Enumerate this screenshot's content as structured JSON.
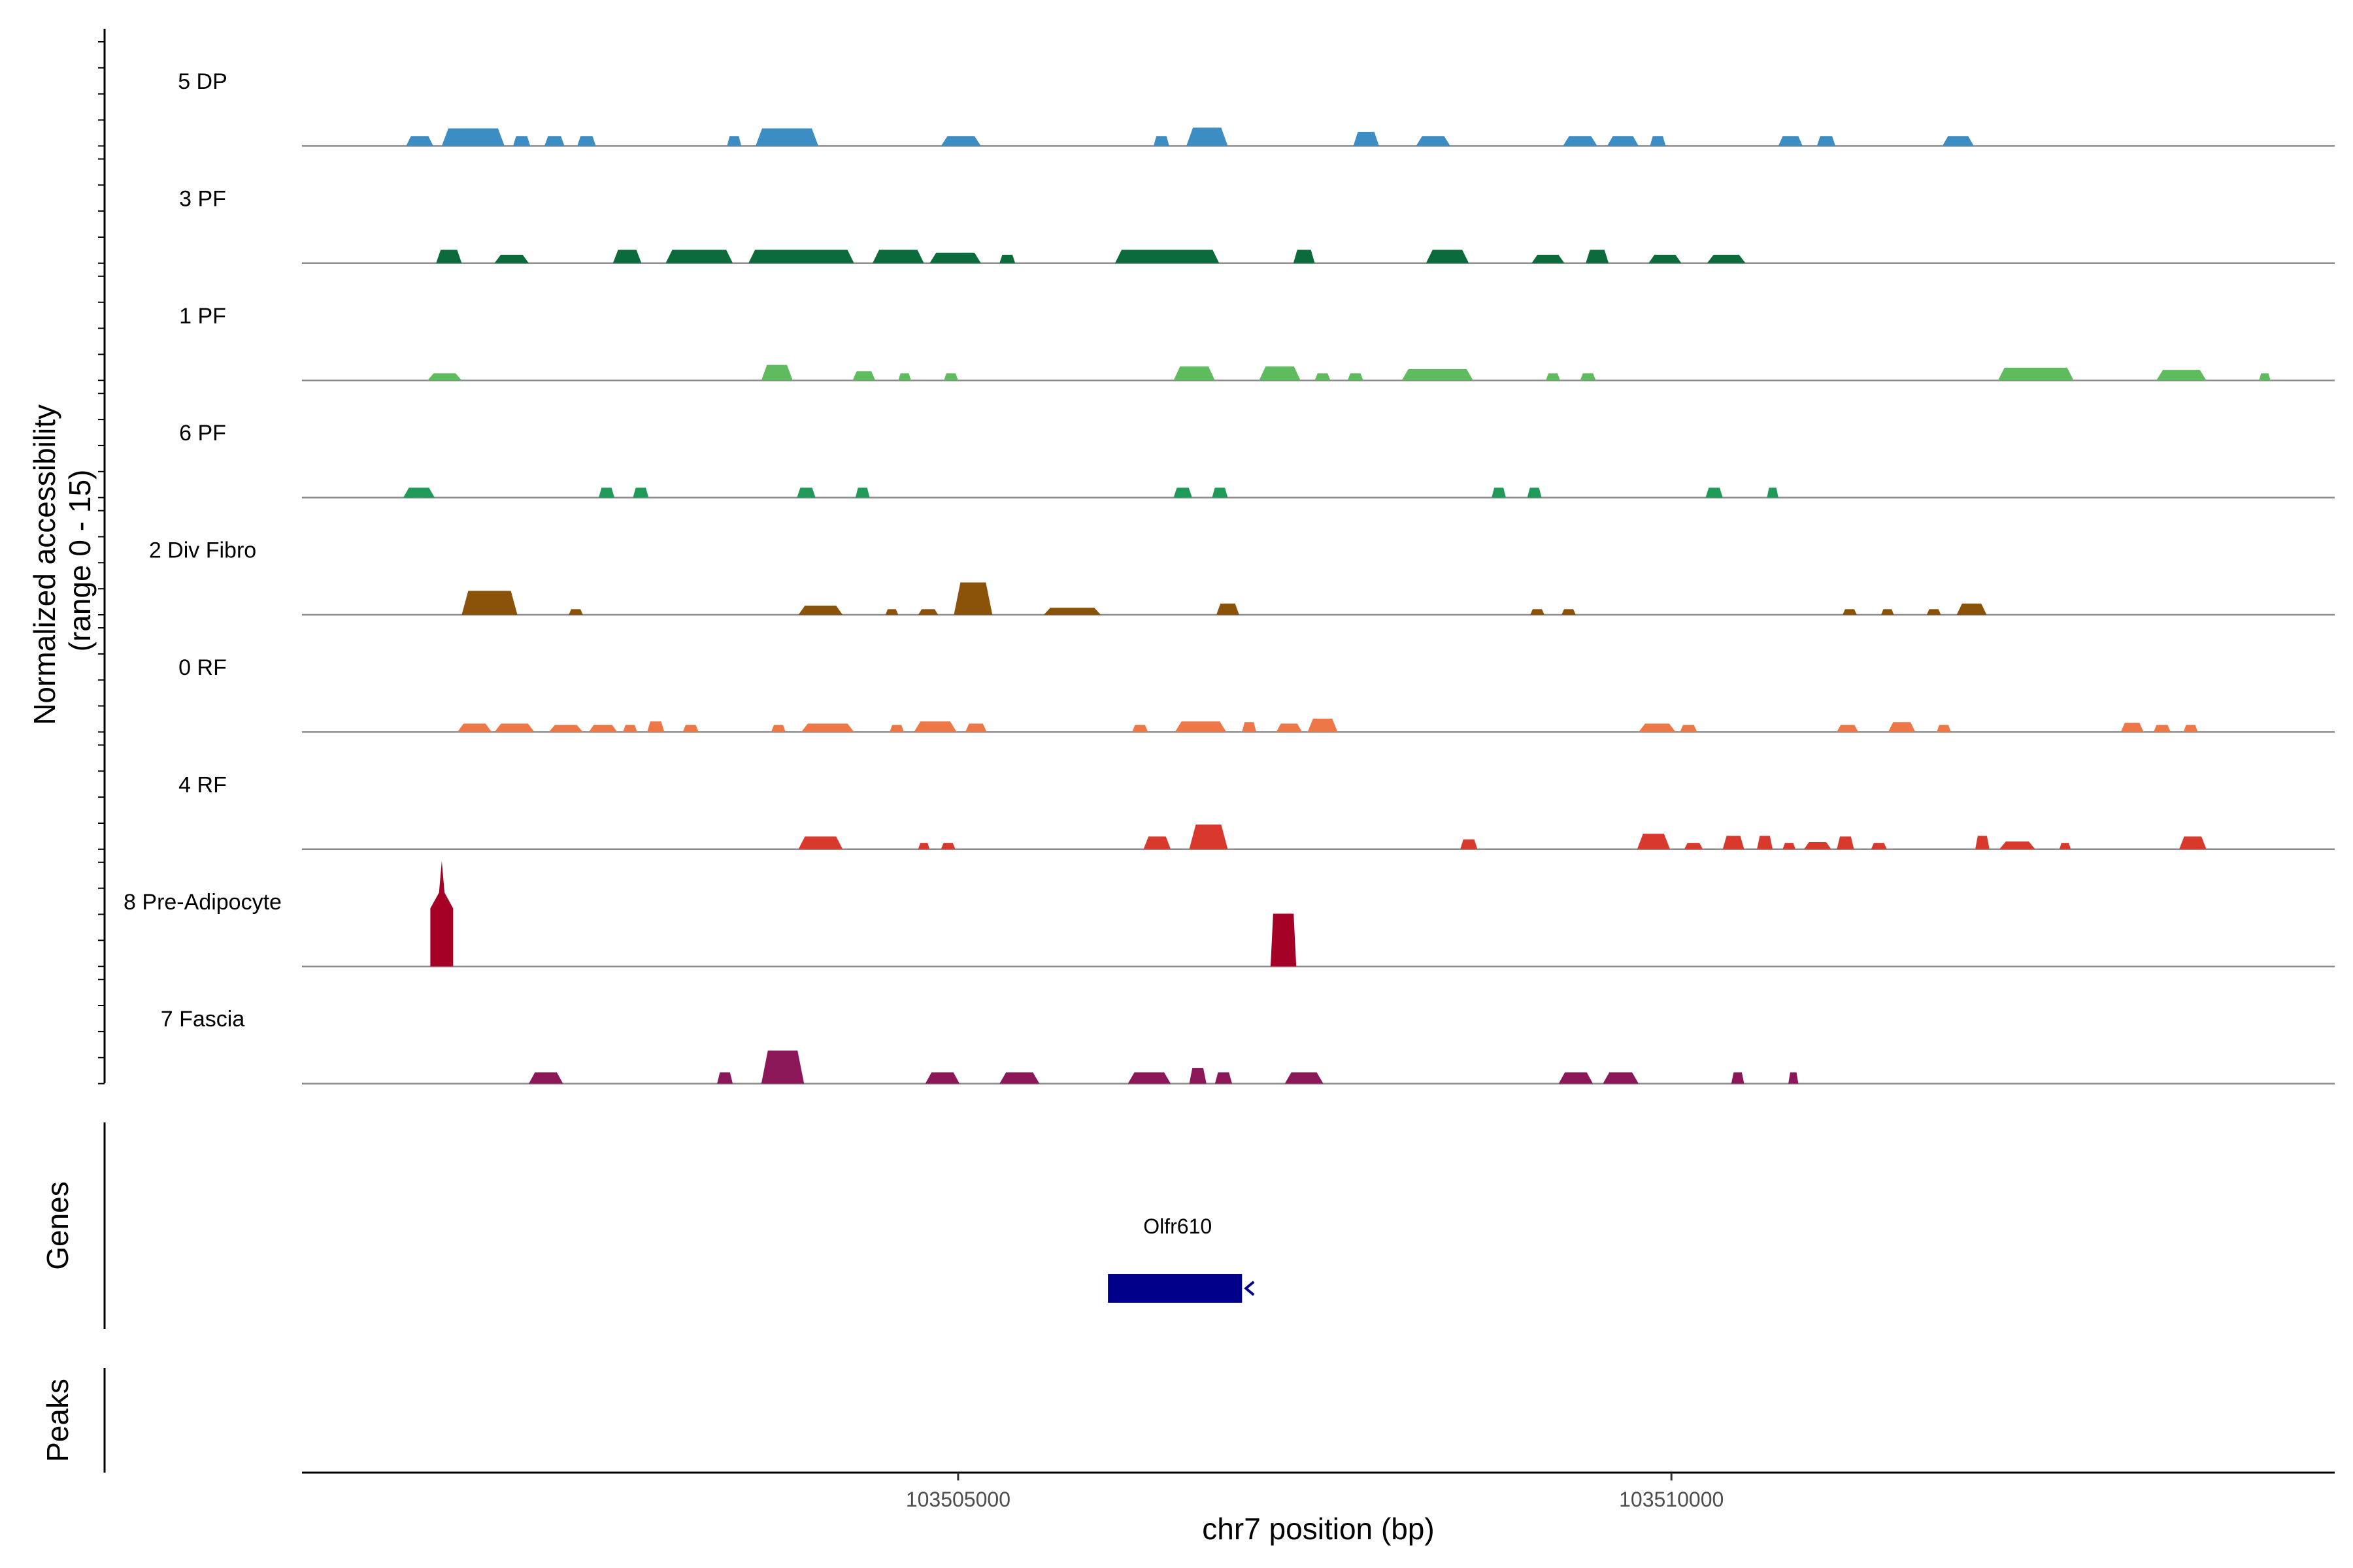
{
  "chart_data": {
    "type": "coverage-track",
    "ylabel": "Normalized accessibility\n(range 0 - 15)",
    "xlabel": "chr7 position (bp)",
    "xlim": [
      103500400,
      103514650
    ],
    "ylim": [
      0,
      15
    ],
    "x_ticks": [
      103505000,
      103510000
    ],
    "x_tick_labels": [
      "103505000",
      "103510000"
    ],
    "genes_label": "Genes",
    "peaks_label": "Peaks",
    "genes": [
      {
        "name": "Olfr610",
        "start": 103506050,
        "end": 103506990,
        "strand": "-",
        "color": "#00008B"
      }
    ],
    "series": [
      {
        "name": "5 DP",
        "color": "#3C8DC4",
        "peaks": [
          [
            103501130,
            103501320,
            1.4
          ],
          [
            103501380,
            103501820,
            2.5
          ],
          [
            103501880,
            103502000,
            1.4
          ],
          [
            103502100,
            103502240,
            1.4
          ],
          [
            103502330,
            103502460,
            1.4
          ],
          [
            103503380,
            103503480,
            1.4
          ],
          [
            103503580,
            103504020,
            2.5
          ],
          [
            103504880,
            103505160,
            1.4
          ],
          [
            103506370,
            103506480,
            1.4
          ],
          [
            103506600,
            103506890,
            2.6
          ],
          [
            103507770,
            103507950,
            2.0
          ],
          [
            103508210,
            103508450,
            1.4
          ],
          [
            103509240,
            103509480,
            1.4
          ],
          [
            103509550,
            103509770,
            1.4
          ],
          [
            103509850,
            103509960,
            1.4
          ],
          [
            103510750,
            103510920,
            1.4
          ],
          [
            103511020,
            103511150,
            1.4
          ],
          [
            103511900,
            103512120,
            1.4
          ]
        ]
      },
      {
        "name": "3 PF",
        "color": "#0B6B3A",
        "peaks": [
          [
            103501340,
            103501520,
            1.9
          ],
          [
            103501750,
            103501990,
            1.2
          ],
          [
            103502580,
            103502780,
            1.9
          ],
          [
            103502950,
            103503420,
            1.9
          ],
          [
            103503530,
            103504270,
            1.9
          ],
          [
            103504400,
            103504760,
            1.9
          ],
          [
            103504800,
            103505160,
            1.5
          ],
          [
            103505290,
            103505400,
            1.2
          ],
          [
            103506100,
            103506830,
            1.9
          ],
          [
            103507350,
            103507500,
            1.9
          ],
          [
            103508280,
            103508580,
            1.9
          ],
          [
            103509020,
            103509250,
            1.2
          ],
          [
            103509400,
            103509560,
            1.9
          ],
          [
            103509840,
            103510070,
            1.2
          ],
          [
            103510250,
            103510520,
            1.2
          ]
        ]
      },
      {
        "name": "1 PF",
        "color": "#5EBB5E",
        "peaks": [
          [
            103501280,
            103501520,
            1.0
          ],
          [
            103503620,
            103503840,
            2.2
          ],
          [
            103504260,
            103504420,
            1.3
          ],
          [
            103504580,
            103504670,
            1.0
          ],
          [
            103504900,
            103505000,
            1.0
          ],
          [
            103506510,
            103506800,
            2.0
          ],
          [
            103507110,
            103507400,
            2.0
          ],
          [
            103507500,
            103507610,
            1.0
          ],
          [
            103507730,
            103507840,
            1.0
          ],
          [
            103508110,
            103508610,
            1.6
          ],
          [
            103509120,
            103509220,
            1.0
          ],
          [
            103509360,
            103509470,
            1.0
          ],
          [
            103512290,
            103512820,
            1.8
          ],
          [
            103513400,
            103513750,
            1.5
          ],
          [
            103514120,
            103514200,
            1.0
          ]
        ]
      },
      {
        "name": "6 PF",
        "color": "#1F9A58",
        "peaks": [
          [
            103501110,
            103501330,
            1.4
          ],
          [
            103502480,
            103502590,
            1.4
          ],
          [
            103502720,
            103502830,
            1.4
          ],
          [
            103503870,
            103504000,
            1.4
          ],
          [
            103504280,
            103504380,
            1.4
          ],
          [
            103506510,
            103506640,
            1.4
          ],
          [
            103506780,
            103506890,
            1.4
          ],
          [
            103508740,
            103508840,
            1.4
          ],
          [
            103508990,
            103509090,
            1.4
          ],
          [
            103510240,
            103510360,
            1.4
          ],
          [
            103510670,
            103510750,
            1.4
          ]
        ]
      },
      {
        "name": "2 Div Fibro",
        "color": "#8B520A",
        "peaks": [
          [
            103501520,
            103501910,
            3.4
          ],
          [
            103502270,
            103502370,
            0.8
          ],
          [
            103503880,
            103504190,
            1.3
          ],
          [
            103504490,
            103504580,
            0.8
          ],
          [
            103504720,
            103504860,
            0.8
          ],
          [
            103504970,
            103505240,
            4.6
          ],
          [
            103505600,
            103506000,
            1.0
          ],
          [
            103506810,
            103506970,
            1.6
          ],
          [
            103509010,
            103509110,
            0.8
          ],
          [
            103509230,
            103509330,
            0.8
          ],
          [
            103511200,
            103511300,
            0.8
          ],
          [
            103511470,
            103511560,
            0.8
          ],
          [
            103511790,
            103511890,
            0.8
          ],
          [
            103512000,
            103512210,
            1.6
          ]
        ]
      },
      {
        "name": "0 RF",
        "color": "#EE7748",
        "peaks": [
          [
            103501490,
            103501730,
            1.2
          ],
          [
            103501750,
            103502030,
            1.2
          ],
          [
            103502130,
            103502370,
            1.0
          ],
          [
            103502410,
            103502610,
            1.0
          ],
          [
            103502650,
            103502750,
            1.0
          ],
          [
            103502820,
            103502940,
            1.5
          ],
          [
            103503070,
            103503180,
            1.0
          ],
          [
            103503690,
            103503790,
            1.0
          ],
          [
            103503900,
            103504270,
            1.2
          ],
          [
            103504520,
            103504620,
            1.0
          ],
          [
            103504690,
            103504990,
            1.5
          ],
          [
            103505050,
            103505200,
            1.2
          ],
          [
            103506220,
            103506330,
            1.0
          ],
          [
            103506520,
            103506880,
            1.5
          ],
          [
            103506990,
            103507090,
            1.4
          ],
          [
            103507230,
            103507410,
            1.2
          ],
          [
            103507450,
            103507660,
            1.9
          ],
          [
            103509770,
            103510030,
            1.2
          ],
          [
            103510060,
            103510180,
            1.0
          ],
          [
            103511160,
            103511310,
            1.0
          ],
          [
            103511520,
            103511710,
            1.4
          ],
          [
            103511860,
            103511960,
            1.0
          ],
          [
            103513150,
            103513310,
            1.3
          ],
          [
            103513380,
            103513500,
            1.0
          ],
          [
            103513590,
            103513690,
            1.0
          ]
        ]
      },
      {
        "name": "4 RF",
        "color": "#D9382C",
        "peaks": [
          [
            103503880,
            103504190,
            1.8
          ],
          [
            103504720,
            103504800,
            0.9
          ],
          [
            103504880,
            103504980,
            0.9
          ],
          [
            103506300,
            103506490,
            1.8
          ],
          [
            103506620,
            103506890,
            3.5
          ],
          [
            103508520,
            103508640,
            1.4
          ],
          [
            103509760,
            103509990,
            2.2
          ],
          [
            103510090,
            103510220,
            0.9
          ],
          [
            103510360,
            103510510,
            1.9
          ],
          [
            103510600,
            103510710,
            1.9
          ],
          [
            103510780,
            103510870,
            0.9
          ],
          [
            103510930,
            103511120,
            1.0
          ],
          [
            103511160,
            103511280,
            1.8
          ],
          [
            103511400,
            103511510,
            0.9
          ],
          [
            103512130,
            103512230,
            1.9
          ],
          [
            103512300,
            103512550,
            1.1
          ],
          [
            103512720,
            103512800,
            0.9
          ],
          [
            103513560,
            103513750,
            1.8
          ]
        ]
      },
      {
        "name": "8 Pre-Adipocyte",
        "color": "#A50026",
        "peaks": [
          [
            103501300,
            103501460,
            15.0
          ],
          [
            103507190,
            103507370,
            7.5
          ]
        ]
      },
      {
        "name": "7 Fascia",
        "color": "#8B1758",
        "peaks": [
          [
            103501990,
            103502230,
            1.6
          ],
          [
            103503310,
            103503420,
            1.6
          ],
          [
            103503620,
            103503920,
            4.7
          ],
          [
            103504770,
            103505010,
            1.6
          ],
          [
            103505290,
            103505570,
            1.6
          ],
          [
            103506190,
            103506490,
            1.6
          ],
          [
            103506620,
            103506740,
            2.2
          ],
          [
            103506800,
            103506920,
            1.6
          ],
          [
            103507290,
            103507560,
            1.6
          ],
          [
            103509210,
            103509450,
            1.6
          ],
          [
            103509520,
            103509770,
            1.6
          ],
          [
            103510420,
            103510510,
            1.6
          ],
          [
            103510820,
            103510890,
            1.6
          ]
        ]
      }
    ]
  }
}
